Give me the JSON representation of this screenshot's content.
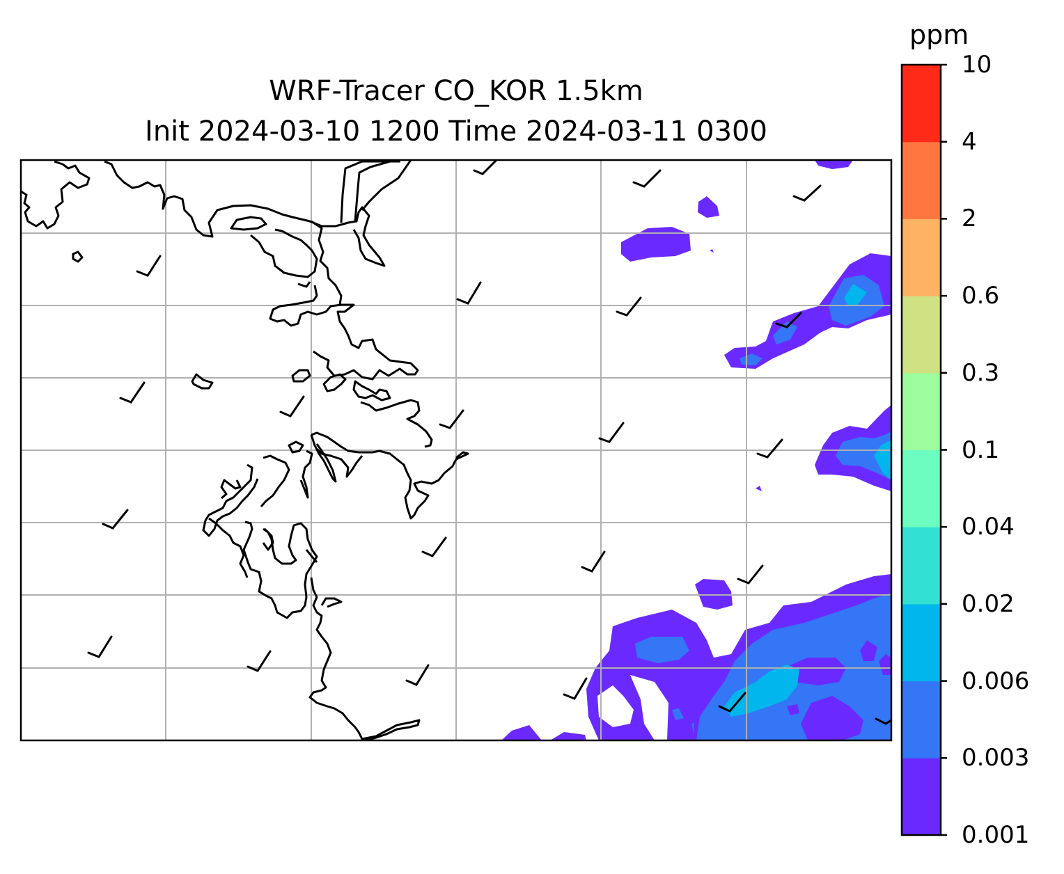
{
  "title": {
    "line1": "WRF-Tracer CO_KOR 1.5km",
    "line2": "Init 2024-03-10 1200 Time 2024-03-11 0300"
  },
  "colorbar": {
    "unit": "ppm",
    "levels": [
      "0.001",
      "0.003",
      "0.006",
      "0.02",
      "0.04",
      "0.1",
      "0.3",
      "0.6",
      "2",
      "4",
      "10"
    ],
    "colors": [
      "#6a2aff",
      "#3476f5",
      "#00b6ec",
      "#33e0d4",
      "#6cfdc0",
      "#9dfc9e",
      "#d0e184",
      "#fdb264",
      "#ff7640",
      "#ff2a17"
    ]
  },
  "map": {
    "gridlines": true,
    "gridline_color": "#b0b0b0",
    "coastline_color": "#000000",
    "wind_barbs_color": "#000000"
  }
}
